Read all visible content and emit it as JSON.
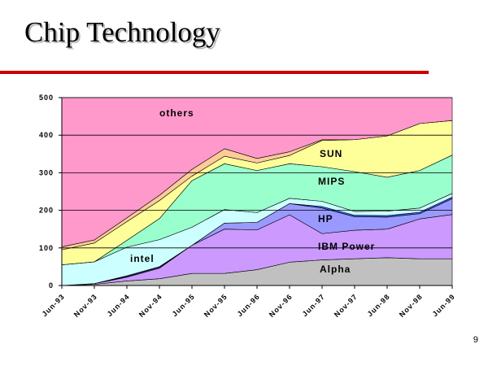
{
  "slide": {
    "title": "Chip Technology",
    "page_number": "9"
  },
  "colors": {
    "title_rule": "#cc0000"
  },
  "chart_data": {
    "type": "area",
    "stacked": true,
    "title": "",
    "xlabel": "",
    "ylabel": "",
    "x": [
      "Jun-93",
      "Nov-93",
      "Jun-94",
      "Nov-94",
      "Jun-95",
      "Nov-95",
      "Jun-96",
      "Nov-96",
      "Jun-97",
      "Nov-97",
      "Jun-98",
      "Nov-98",
      "Jun-99"
    ],
    "ylim": [
      0,
      500
    ],
    "yticks": [
      "0",
      "100",
      "200",
      "300",
      "400",
      "500"
    ],
    "grid": true,
    "series": [
      {
        "name": "Alpha",
        "color": "#c0c0c0",
        "values": [
          0,
          3,
          12,
          18,
          32,
          32,
          42,
          62,
          68,
          71,
          74,
          71,
          71
        ]
      },
      {
        "name": "IBM Power",
        "color": "#cc99ff",
        "values": [
          0,
          2,
          10,
          28,
          75,
          118,
          106,
          126,
          70,
          76,
          76,
          106,
          118
        ]
      },
      {
        "name": "",
        "color": "#9999ff",
        "values": [
          0,
          0,
          2,
          2,
          0,
          16,
          20,
          30,
          68,
          36,
          32,
          14,
          42
        ]
      },
      {
        "name": "HP",
        "color": "#3366ff",
        "values": [
          0,
          0,
          2,
          2,
          0,
          0,
          0,
          0,
          4,
          4,
          4,
          4,
          4
        ]
      },
      {
        "name": "",
        "color": "#ccffff",
        "values": [
          55,
          58,
          76,
          72,
          48,
          36,
          26,
          14,
          14,
          10,
          12,
          11,
          10
        ]
      },
      {
        "name": "intel",
        "color": "#99ffcc",
        "values": [
          0,
          0,
          18,
          56,
          124,
          122,
          112,
          92,
          92,
          106,
          90,
          100,
          102
        ]
      },
      {
        "name": "MIPS",
        "color": "#ffff99",
        "values": [
          40,
          50,
          50,
          48,
          12,
          20,
          20,
          22,
          70,
          85,
          110,
          125,
          92
        ]
      },
      {
        "name": "SUN",
        "color": "#ffcc99",
        "values": [
          8,
          8,
          10,
          14,
          18,
          20,
          12,
          10,
          2,
          0,
          0,
          0,
          0
        ]
      },
      {
        "name": "others",
        "color": "#ff99cc",
        "values": [
          397,
          379,
          320,
          260,
          191,
          136,
          162,
          144,
          112,
          112,
          102,
          69,
          61
        ]
      }
    ],
    "labels": [
      "others",
      "SUN",
      "MIPS",
      "HP",
      "intel",
      "IBM Power",
      "Alpha"
    ]
  }
}
